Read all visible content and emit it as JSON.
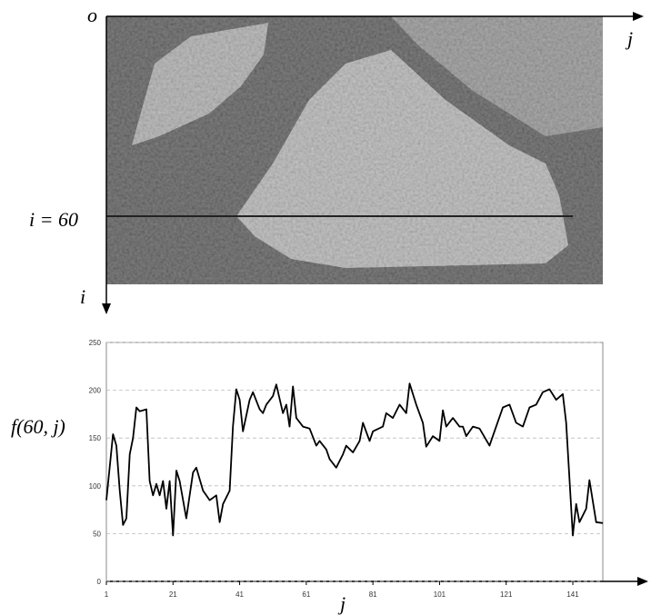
{
  "image": {
    "origin_label": "o",
    "horizontal_axis_label": "j",
    "vertical_axis_label": "i",
    "row_label": "i = 60"
  },
  "chart_data": {
    "type": "line",
    "y_label": "f(60, j)",
    "x_label": "j",
    "x": [
      1,
      3,
      4,
      5,
      6,
      7,
      8,
      9,
      10,
      11,
      13,
      14,
      15,
      16,
      17,
      18,
      19,
      20,
      21,
      22,
      23,
      25,
      26,
      27,
      28,
      30,
      31,
      32,
      34,
      35,
      36,
      38,
      39,
      40,
      41,
      42,
      44,
      45,
      47,
      48,
      49,
      51,
      52,
      54,
      55,
      56,
      57,
      58,
      60,
      62,
      64,
      65,
      67,
      68,
      70,
      72,
      73,
      75,
      77,
      78,
      80,
      81,
      84,
      85,
      87,
      89,
      91,
      92,
      94,
      96,
      97,
      99,
      101,
      102,
      103,
      105,
      107,
      108,
      109,
      111,
      113,
      116,
      118,
      120,
      122,
      124,
      126,
      128,
      130,
      132,
      134,
      136,
      138,
      139,
      141,
      142,
      143,
      145,
      146,
      148,
      150
    ],
    "values": [
      85,
      154,
      142,
      95,
      59,
      66,
      133,
      150,
      182,
      178,
      180,
      105,
      90,
      102,
      90,
      105,
      76,
      105,
      48,
      116,
      105,
      66,
      90,
      114,
      119,
      95,
      90,
      85,
      90,
      62,
      81,
      95,
      162,
      201,
      190,
      157,
      190,
      198,
      180,
      176,
      185,
      194,
      206,
      176,
      185,
      162,
      204,
      171,
      162,
      160,
      142,
      147,
      138,
      128,
      119,
      133,
      142,
      135,
      147,
      166,
      147,
      157,
      162,
      176,
      171,
      185,
      176,
      207,
      185,
      166,
      141,
      152,
      147,
      179,
      162,
      171,
      162,
      162,
      152,
      162,
      160,
      142,
      162,
      182,
      185,
      166,
      162,
      182,
      185,
      198,
      201,
      190,
      196,
      166,
      48,
      81,
      62,
      76,
      106,
      62,
      61
    ],
    "color": "#000000",
    "xlim": [
      1,
      150
    ],
    "xticks": [
      1,
      21,
      41,
      61,
      81,
      101,
      121,
      141
    ],
    "ylim": [
      0,
      250
    ],
    "yticks": [
      0,
      50,
      100,
      150,
      200,
      250
    ],
    "grid": true
  }
}
